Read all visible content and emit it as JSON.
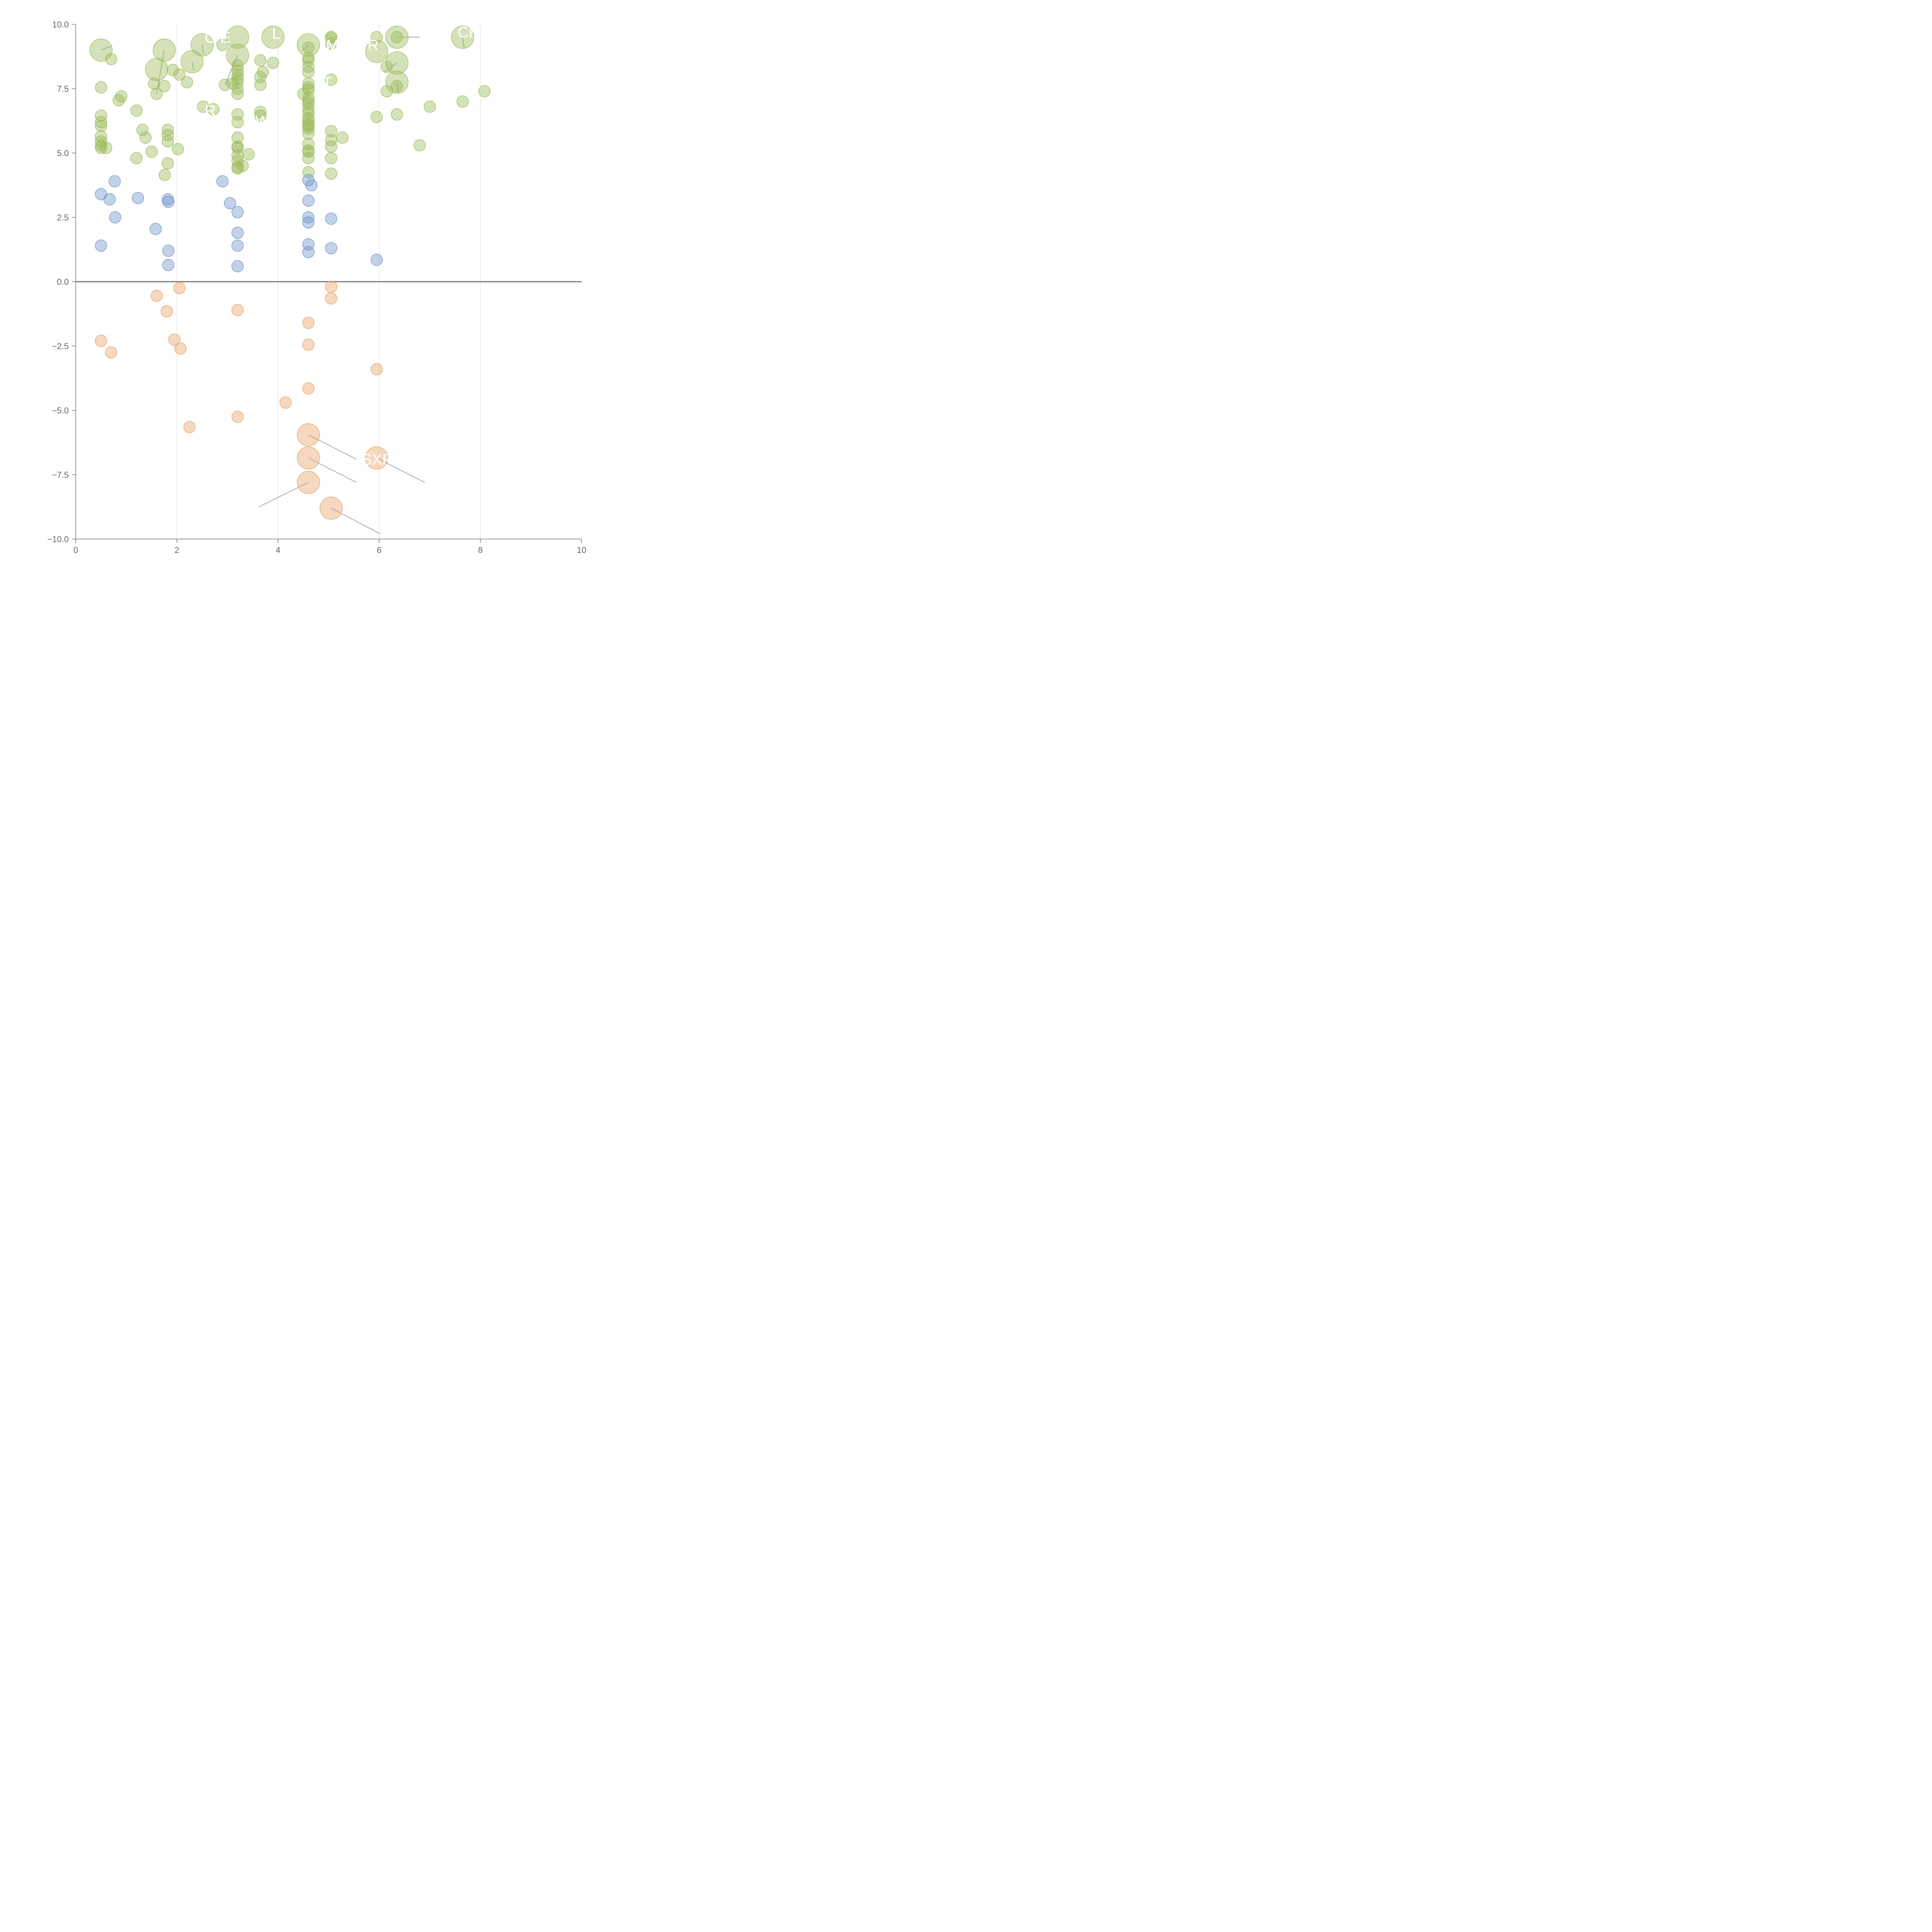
{
  "chart_data": {
    "type": "scatter",
    "title": "",
    "xlabel": "",
    "ylabel": "",
    "xlim": [
      0,
      10
    ],
    "ylim": [
      -10,
      10
    ],
    "x_ticks": [
      "0",
      "2",
      "4",
      "6",
      "8",
      "10"
    ],
    "y_ticks": [
      "10.0",
      "7.5",
      "5.0",
      "2.5",
      "0.0",
      "−2.5",
      "−5.0",
      "−7.5",
      "−10.0"
    ],
    "x_tick_values": [
      0,
      2,
      4,
      6,
      8,
      10
    ],
    "y_tick_values": [
      10,
      7.5,
      5,
      2.5,
      0,
      -2.5,
      -5,
      -7.5,
      -10
    ],
    "vertical_gridlines": [
      2,
      4,
      6,
      8
    ],
    "zero_line": 0,
    "colors": {
      "green": "#9bbb59",
      "blue": "#6f93c9",
      "orange": "#e8a166",
      "axis": "#777777",
      "grid": "#dddddd"
    },
    "series": [
      {
        "color": "green",
        "points": [
          [
            0.5,
            9.0,
            "l"
          ],
          [
            0.7,
            8.65,
            "s"
          ],
          [
            1.75,
            9.0,
            "l"
          ],
          [
            1.6,
            8.25,
            "l"
          ],
          [
            1.92,
            8.23,
            "s"
          ],
          [
            2.05,
            8.05,
            "s"
          ],
          [
            2.3,
            8.55,
            "l"
          ],
          [
            2.5,
            9.2,
            "l"
          ],
          [
            2.2,
            7.75,
            "s"
          ],
          [
            2.9,
            9.2,
            "s"
          ],
          [
            3.2,
            9.5,
            "l"
          ],
          [
            3.2,
            8.8,
            "l"
          ],
          [
            3.9,
            9.5,
            "l"
          ],
          [
            3.65,
            8.6,
            "s"
          ],
          [
            3.9,
            8.5,
            "s"
          ],
          [
            4.6,
            9.2,
            "l"
          ],
          [
            4.6,
            9.1,
            "s"
          ],
          [
            4.6,
            8.7,
            "s"
          ],
          [
            4.6,
            8.6,
            "s"
          ],
          [
            4.6,
            8.35,
            "s"
          ],
          [
            4.6,
            8.15,
            "s"
          ],
          [
            5.05,
            9.5,
            "s"
          ],
          [
            5.05,
            9.5,
            "s"
          ],
          [
            5.05,
            9.25,
            "s"
          ],
          [
            5.05,
            7.85,
            "s"
          ],
          [
            5.95,
            9.5,
            "s"
          ],
          [
            5.95,
            8.95,
            "l"
          ],
          [
            6.35,
            9.5,
            "l"
          ],
          [
            6.35,
            9.5,
            "s"
          ],
          [
            6.35,
            8.5,
            "l"
          ],
          [
            6.15,
            8.35,
            "s"
          ],
          [
            6.35,
            7.75,
            "l"
          ],
          [
            6.35,
            7.6,
            "s"
          ],
          [
            6.15,
            7.4,
            "s"
          ],
          [
            7.65,
            9.5,
            "l"
          ],
          [
            0.5,
            7.55,
            "s"
          ],
          [
            1.55,
            7.7,
            "s"
          ],
          [
            1.75,
            7.6,
            "s"
          ],
          [
            1.6,
            7.3,
            "s"
          ],
          [
            0.9,
            7.2,
            "s"
          ],
          [
            0.85,
            7.05,
            "s"
          ],
          [
            3.2,
            8.4,
            "s"
          ],
          [
            3.2,
            8.2,
            "s"
          ],
          [
            3.2,
            8.05,
            "s"
          ],
          [
            3.2,
            7.9,
            "s"
          ],
          [
            3.2,
            7.75,
            "s"
          ],
          [
            3.2,
            7.5,
            "s"
          ],
          [
            3.2,
            7.3,
            "s"
          ],
          [
            3.1,
            7.7,
            "s"
          ],
          [
            2.95,
            7.65,
            "s"
          ],
          [
            3.7,
            8.15,
            "s"
          ],
          [
            3.65,
            7.95,
            "s"
          ],
          [
            3.65,
            7.65,
            "s"
          ],
          [
            4.5,
            7.3,
            "s"
          ],
          [
            4.6,
            7.7,
            "s"
          ],
          [
            4.6,
            7.55,
            "s"
          ],
          [
            4.6,
            7.45,
            "s"
          ],
          [
            4.6,
            7.15,
            "s"
          ],
          [
            4.6,
            7.0,
            "s"
          ],
          [
            4.6,
            6.9,
            "s"
          ],
          [
            4.6,
            6.7,
            "s"
          ],
          [
            4.6,
            6.55,
            "s"
          ],
          [
            4.6,
            6.35,
            "s"
          ],
          [
            4.6,
            6.25,
            "s"
          ],
          [
            4.6,
            6.1,
            "s"
          ],
          [
            4.6,
            5.95,
            "s"
          ],
          [
            4.6,
            5.75,
            "s"
          ],
          [
            4.6,
            5.35,
            "s"
          ],
          [
            4.6,
            5.1,
            "s"
          ],
          [
            4.6,
            5.05,
            "s"
          ],
          [
            4.6,
            4.8,
            "s"
          ],
          [
            4.6,
            4.25,
            "s"
          ],
          [
            4.6,
            6.05,
            "s"
          ],
          [
            0.5,
            6.45,
            "s"
          ],
          [
            0.5,
            6.2,
            "s"
          ],
          [
            0.5,
            6.05,
            "s"
          ],
          [
            0.5,
            5.65,
            "s"
          ],
          [
            0.5,
            5.45,
            "s"
          ],
          [
            0.5,
            5.3,
            "s"
          ],
          [
            0.5,
            5.2,
            "s"
          ],
          [
            0.6,
            5.2,
            "s"
          ],
          [
            1.2,
            6.65,
            "s"
          ],
          [
            1.32,
            5.9,
            "s"
          ],
          [
            1.38,
            5.6,
            "s"
          ],
          [
            1.5,
            5.05,
            "s"
          ],
          [
            1.2,
            4.8,
            "s"
          ],
          [
            1.82,
            5.9,
            "s"
          ],
          [
            1.82,
            5.7,
            "s"
          ],
          [
            1.82,
            5.45,
            "s"
          ],
          [
            2.02,
            5.15,
            "s"
          ],
          [
            1.82,
            4.6,
            "s"
          ],
          [
            1.76,
            4.15,
            "s"
          ],
          [
            2.52,
            6.8,
            "s"
          ],
          [
            2.72,
            6.7,
            "s"
          ],
          [
            3.2,
            6.5,
            "s"
          ],
          [
            3.2,
            6.2,
            "s"
          ],
          [
            3.2,
            5.6,
            "s"
          ],
          [
            3.2,
            5.25,
            "s"
          ],
          [
            3.2,
            5.2,
            "s"
          ],
          [
            3.2,
            4.9,
            "s"
          ],
          [
            3.2,
            4.7,
            "s"
          ],
          [
            3.2,
            4.45,
            "s"
          ],
          [
            3.2,
            4.4,
            "s"
          ],
          [
            3.3,
            4.5,
            "s"
          ],
          [
            3.42,
            4.95,
            "s"
          ],
          [
            3.65,
            6.6,
            "s"
          ],
          [
            3.65,
            6.45,
            "s"
          ],
          [
            5.05,
            5.85,
            "s"
          ],
          [
            5.05,
            5.5,
            "s"
          ],
          [
            5.05,
            5.25,
            "s"
          ],
          [
            5.05,
            4.8,
            "s"
          ],
          [
            5.05,
            4.2,
            "s"
          ],
          [
            5.27,
            5.6,
            "s"
          ],
          [
            5.95,
            6.4,
            "s"
          ],
          [
            6.35,
            6.5,
            "s"
          ],
          [
            7.0,
            6.8,
            "s"
          ],
          [
            7.65,
            7.0,
            "s"
          ],
          [
            8.08,
            7.4,
            "s"
          ],
          [
            6.8,
            5.3,
            "s"
          ]
        ]
      },
      {
        "color": "blue",
        "points": [
          [
            0.77,
            3.9,
            "s"
          ],
          [
            0.5,
            3.4,
            "s"
          ],
          [
            0.67,
            3.2,
            "s"
          ],
          [
            1.23,
            3.25,
            "s"
          ],
          [
            1.82,
            3.2,
            "s"
          ],
          [
            1.83,
            3.1,
            "s"
          ],
          [
            0.78,
            2.5,
            "s"
          ],
          [
            1.58,
            2.05,
            "s"
          ],
          [
            0.5,
            1.4,
            "s"
          ],
          [
            1.83,
            1.2,
            "s"
          ],
          [
            1.83,
            0.65,
            "s"
          ],
          [
            2.9,
            3.9,
            "s"
          ],
          [
            3.05,
            3.05,
            "s"
          ],
          [
            3.2,
            2.7,
            "s"
          ],
          [
            3.2,
            1.9,
            "s"
          ],
          [
            3.2,
            1.4,
            "s"
          ],
          [
            3.2,
            0.6,
            "s"
          ],
          [
            4.6,
            3.95,
            "s"
          ],
          [
            4.66,
            3.75,
            "s"
          ],
          [
            4.6,
            3.15,
            "s"
          ],
          [
            4.6,
            2.5,
            "s"
          ],
          [
            4.6,
            2.3,
            "s"
          ],
          [
            4.6,
            1.45,
            "s"
          ],
          [
            4.6,
            1.15,
            "s"
          ],
          [
            5.05,
            2.45,
            "s"
          ],
          [
            5.05,
            1.3,
            "s"
          ],
          [
            5.95,
            0.85,
            "s"
          ]
        ]
      },
      {
        "color": "orange",
        "points": [
          [
            2.05,
            -0.25,
            "s"
          ],
          [
            1.6,
            -0.55,
            "s"
          ],
          [
            1.8,
            -1.15,
            "s"
          ],
          [
            0.5,
            -2.3,
            "s"
          ],
          [
            0.7,
            -2.75,
            "s"
          ],
          [
            1.95,
            -2.25,
            "s"
          ],
          [
            2.07,
            -2.6,
            "s"
          ],
          [
            2.25,
            -5.65,
            "s"
          ],
          [
            3.2,
            -1.1,
            "s"
          ],
          [
            3.2,
            -5.25,
            "s"
          ],
          [
            4.15,
            -4.7,
            "s"
          ],
          [
            4.6,
            -1.6,
            "s"
          ],
          [
            4.6,
            -2.45,
            "s"
          ],
          [
            4.6,
            -4.15,
            "s"
          ],
          [
            5.05,
            -0.2,
            "s"
          ],
          [
            5.05,
            -0.65,
            "s"
          ],
          [
            5.95,
            -3.4,
            "s"
          ],
          [
            4.6,
            -5.95,
            "l"
          ],
          [
            4.6,
            -6.85,
            "l"
          ],
          [
            4.6,
            -7.8,
            "l"
          ],
          [
            5.05,
            -8.8,
            "l"
          ],
          [
            5.95,
            -6.85,
            "l"
          ]
        ]
      }
    ],
    "point_labels": [
      {
        "text": "C E",
        "x": 2.55,
        "y": 9.5
      },
      {
        "text": "L",
        "x": 3.88,
        "y": 9.65
      },
      {
        "text": "M",
        "x": 4.95,
        "y": 9.2
      },
      {
        "text": "R",
        "x": 5.77,
        "y": 9.2
      },
      {
        "text": "CH",
        "x": 7.55,
        "y": 9.7
      },
      {
        "text": "T",
        "x": 4.88,
        "y": 7.75
      },
      {
        "text": "R",
        "x": 2.55,
        "y": 6.65
      },
      {
        "text": "W",
        "x": 3.55,
        "y": 6.25
      },
      {
        "text": "SXP",
        "x": 5.65,
        "y": -6.9
      }
    ],
    "leader_lines": [
      {
        "from": [
          0.5,
          9.0
        ],
        "to": [
          0.7,
          9.15
        ]
      },
      {
        "from": [
          1.75,
          9.0
        ],
        "to": [
          1.6,
          7.3
        ]
      },
      {
        "from": [
          2.3,
          8.55
        ],
        "to": [
          2.33,
          8.2
        ]
      },
      {
        "from": [
          2.5,
          9.2
        ],
        "to": [
          2.52,
          8.85
        ]
      },
      {
        "from": [
          3.2,
          8.8
        ],
        "to": [
          2.95,
          7.65
        ]
      },
      {
        "from": [
          4.6,
          9.2
        ],
        "to": [
          4.5,
          9.0
        ]
      },
      {
        "from": [
          6.35,
          9.5
        ],
        "to": [
          6.8,
          9.5
        ]
      },
      {
        "from": [
          6.35,
          8.5
        ],
        "to": [
          6.1,
          8.15
        ]
      },
      {
        "from": [
          6.35,
          7.75
        ],
        "to": [
          6.38,
          7.35
        ]
      },
      {
        "from": [
          7.65,
          9.5
        ],
        "to": [
          7.68,
          9.05
        ]
      },
      {
        "from": [
          4.6,
          -5.95
        ],
        "to": [
          5.55,
          -6.9
        ]
      },
      {
        "from": [
          4.6,
          -6.85
        ],
        "to": [
          5.55,
          -7.8
        ]
      },
      {
        "from": [
          4.6,
          -7.8
        ],
        "to": [
          3.62,
          -8.75
        ]
      },
      {
        "from": [
          5.05,
          -8.8
        ],
        "to": [
          6.02,
          -9.8
        ]
      },
      {
        "from": [
          5.95,
          -6.85
        ],
        "to": [
          6.9,
          -7.8
        ]
      }
    ]
  }
}
